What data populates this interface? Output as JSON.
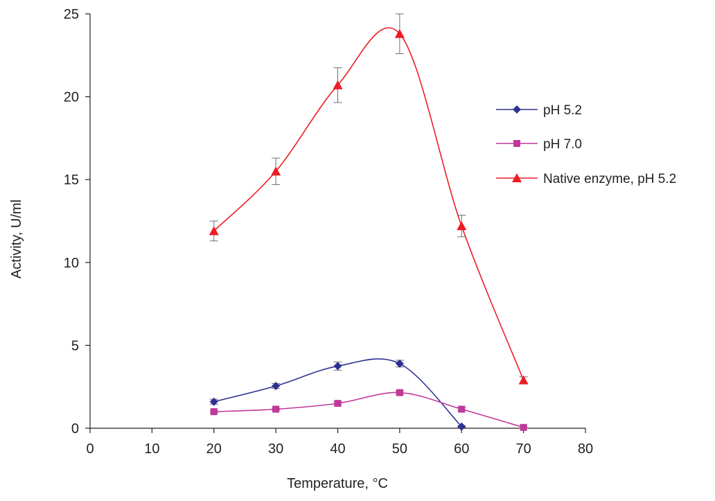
{
  "chart_data": {
    "type": "line",
    "xlabel": "Temperature, °C",
    "ylabel": "Activity, U/ml",
    "xlim": [
      0,
      80
    ],
    "ylim": [
      0,
      25
    ],
    "xticks": [
      0,
      10,
      20,
      30,
      40,
      50,
      60,
      70,
      80
    ],
    "yticks": [
      0,
      5,
      10,
      15,
      20,
      25
    ],
    "grid": false,
    "legend_position": "right",
    "series": [
      {
        "name": "pH 5.2",
        "color": "#2e3192",
        "marker": "diamond",
        "x": [
          20,
          30,
          40,
          50,
          60
        ],
        "y": [
          1.6,
          2.55,
          3.75,
          3.9,
          0.1
        ],
        "error": [
          0.15,
          0.15,
          0.25,
          0.2,
          0.05
        ]
      },
      {
        "name": "pH 7.0",
        "color": "#c0399a",
        "marker": "square",
        "x": [
          20,
          30,
          40,
          50,
          60,
          70
        ],
        "y": [
          1.0,
          1.15,
          1.5,
          2.15,
          1.15,
          0.05
        ],
        "error": [
          0.05,
          0.05,
          0.1,
          0.1,
          0.1,
          0.05
        ]
      },
      {
        "name": "Native enzyme, pH 5.2",
        "color": "#ed1c24",
        "marker": "triangle",
        "x": [
          20,
          30,
          40,
          50,
          60,
          70
        ],
        "y": [
          11.9,
          15.5,
          20.7,
          23.8,
          12.2,
          2.9
        ],
        "error": [
          0.6,
          0.8,
          1.05,
          1.2,
          0.65,
          0.2
        ]
      }
    ]
  }
}
